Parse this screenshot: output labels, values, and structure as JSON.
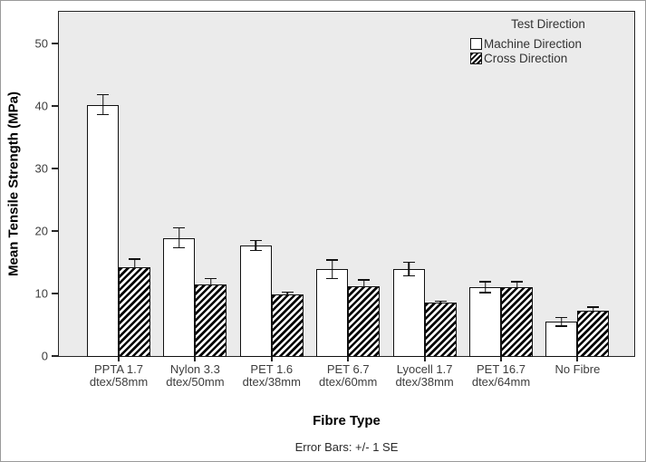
{
  "figure": {
    "ylabel": "Mean Tensile Strength (MPa)",
    "xlabel": "Fibre Type",
    "caption": "Error Bars: +/- 1 SE"
  },
  "legend": {
    "title": "Test Direction",
    "entries": [
      {
        "label": "Machine Direction",
        "swatch": "white"
      },
      {
        "label": "Cross Direction",
        "swatch": "hatched"
      }
    ]
  },
  "chart_data": {
    "type": "bar",
    "title": "",
    "xlabel": "Fibre Type",
    "ylabel": "Mean Tensile Strength (MPa)",
    "caption": "Error Bars: +/- 1 SE",
    "legend_title": "Test Direction",
    "legend_position": "top-right-inside",
    "grid": false,
    "plot_background": "#ebebeb",
    "ylim": [
      0,
      55
    ],
    "yticks": [
      0,
      10,
      20,
      30,
      40,
      50
    ],
    "categories": [
      "PPTA 1.7 dtex/58mm",
      "Nylon 3.3 dtex/50mm",
      "PET 1.6 dtex/38mm",
      "PET 6.7 dtex/60mm",
      "Lyocell 1.7 dtex/38mm",
      "PET 16.7 dtex/64mm",
      "No Fibre"
    ],
    "category_lines": [
      [
        "PPTA 1.7",
        "dtex/58mm"
      ],
      [
        "Nylon 3.3",
        "dtex/50mm"
      ],
      [
        "PET 1.6",
        "dtex/38mm"
      ],
      [
        "PET 6.7",
        "dtex/60mm"
      ],
      [
        "Lyocell 1.7",
        "dtex/38mm"
      ],
      [
        "PET 16.7",
        "dtex/64mm"
      ],
      [
        "No Fibre"
      ]
    ],
    "series": [
      {
        "name": "Machine Direction",
        "style": "white",
        "values": [
          40.2,
          18.9,
          17.7,
          13.9,
          13.9,
          11.0,
          5.5
        ],
        "standard_errors": [
          1.7,
          1.7,
          0.9,
          1.6,
          1.2,
          1.0,
          0.8
        ]
      },
      {
        "name": "Cross Direction",
        "style": "hatched",
        "values": [
          14.2,
          11.4,
          9.8,
          11.2,
          8.5,
          11.0,
          7.2
        ],
        "standard_errors": [
          1.4,
          1.1,
          0.5,
          1.1,
          0.4,
          1.0,
          0.7
        ]
      }
    ],
    "error_bars": "+/- 1 SE",
    "colors": {
      "plot_bg": "#ebebeb",
      "bar_fill": "#ffffff",
      "bar_border": "#111111",
      "hatch": "#000000",
      "tick_text": "#3d3d3d",
      "axis_title_text": "#000000"
    }
  }
}
